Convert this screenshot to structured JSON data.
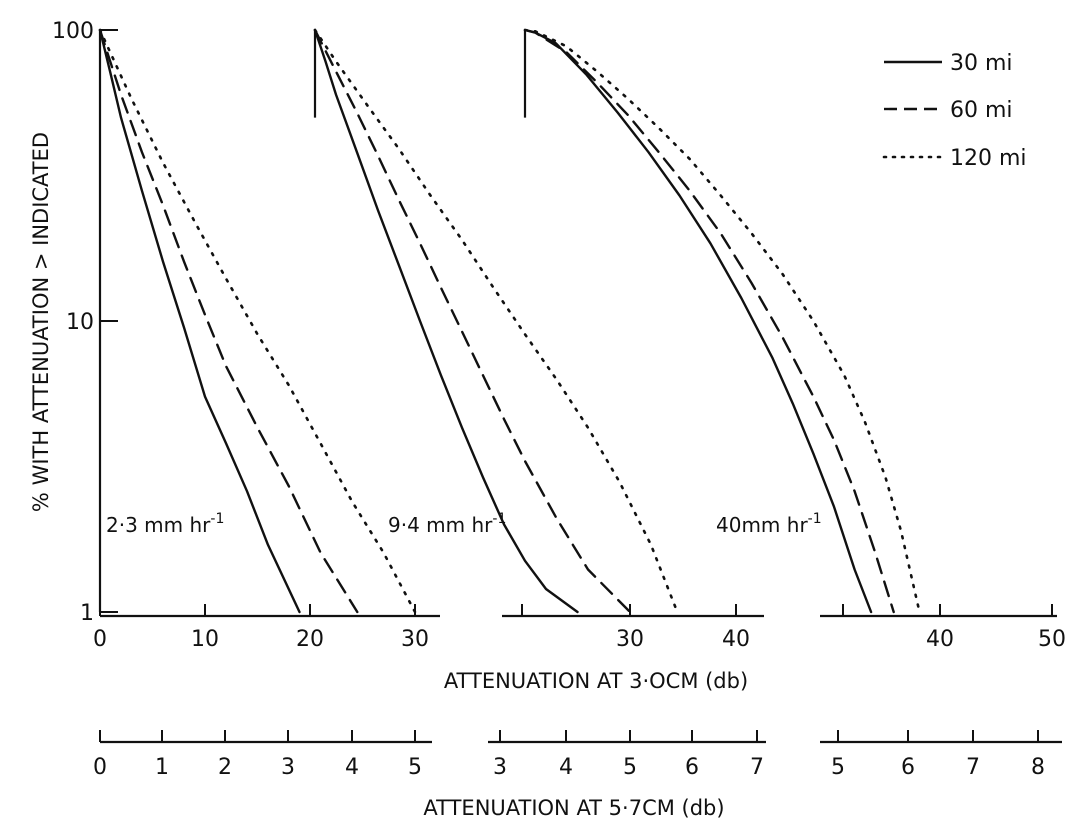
{
  "chart_data": {
    "type": "line",
    "ylabel": "% WITH ATTENUATION > INDICATED",
    "y_scale": "log",
    "ylim": [
      1,
      100
    ],
    "y_ticks": [
      {
        "value": 1,
        "label": "1"
      },
      {
        "value": 10,
        "label": "10"
      },
      {
        "value": 100,
        "label": "100"
      }
    ],
    "x_axis_3cm": {
      "title": "ATTENUATION AT 3·OCM (db)",
      "ticks": [
        "0",
        "10",
        "20",
        "30",
        "30",
        "40",
        "40",
        "50"
      ]
    },
    "x_axis_5_7cm": {
      "title": "ATTENUATION AT 5·7CM (db)",
      "ticks": [
        "0",
        "1",
        "2",
        "3",
        "4",
        "5",
        "3",
        "4",
        "5",
        "6",
        "7",
        "5",
        "6",
        "7",
        "8"
      ]
    },
    "legend": {
      "position": "top-right",
      "entries": [
        {
          "label": "30 mi",
          "style": "solid"
        },
        {
          "label": "60 mi",
          "style": "dashed"
        },
        {
          "label": "120 mi",
          "style": "dotted"
        }
      ]
    },
    "panels": [
      {
        "rain_rate_label": "2·3 mm hr",
        "rain_rate_exponent": "-1",
        "x_range_db_3cm": [
          0,
          33
        ],
        "series": [
          {
            "name": "30 mi",
            "style": "solid",
            "x": [
              0,
              1,
              2,
              4,
              6,
              8,
              10,
              12,
              14,
              16,
              19
            ],
            "y": [
              100,
              71,
              50,
              28,
              16,
              9.5,
              5.5,
              3.8,
              2.6,
              1.7,
              1
            ]
          },
          {
            "name": "60 mi",
            "style": "dashed",
            "x": [
              0,
              2,
              4,
              6,
              8,
              10,
              12,
              15,
              18,
              21,
              24.5
            ],
            "y": [
              100,
              60,
              38,
              25,
              16,
              10.5,
              7,
              4.3,
              2.7,
              1.6,
              1
            ]
          },
          {
            "name": "120 mi",
            "style": "dotted",
            "x": [
              0,
              3,
              6,
              9,
              12,
              15,
              18,
              21,
              24,
              27,
              30
            ],
            "y": [
              100,
              58,
              35,
              22,
              14,
              9,
              6,
              3.8,
              2.4,
              1.6,
              1
            ]
          }
        ]
      },
      {
        "rain_rate_label": "9·4 mm hr",
        "rain_rate_exponent": "-1",
        "x_range_db_3cm": [
          20,
          33
        ],
        "series": [
          {
            "name": "30 mi",
            "style": "solid",
            "x": [
              20,
              21,
              22,
              24,
              26,
              28,
              30,
              32,
              34,
              36,
              38,
              40,
              42,
              45
            ],
            "y": [
              100,
              78,
              60,
              38,
              24,
              15.5,
              10,
              6.5,
              4.3,
              2.9,
              2,
              1.5,
              1.2,
              1
            ]
          },
          {
            "name": "60 mi",
            "style": "dashed",
            "x": [
              20,
              22,
              24,
              26,
              28,
              30,
              32,
              34,
              36,
              38,
              40,
              43,
              46,
              50
            ],
            "y": [
              100,
              72,
              52,
              37,
              26,
              18.5,
              13,
              9.2,
              6.5,
              4.6,
              3.3,
              2.1,
              1.4,
              1
            ]
          },
          {
            "name": "120 mi",
            "style": "dotted",
            "x": [
              20,
              22,
              25,
              28,
              31,
              34,
              37,
              40,
              43,
              46,
              49,
              52,
              54.5
            ],
            "y": [
              100,
              78,
              55,
              39,
              27,
              19,
              13,
              9,
              6.3,
              4.3,
              2.8,
              1.7,
              1
            ]
          }
        ]
      },
      {
        "rain_rate_label": "40mm hr",
        "rain_rate_exponent": "-1",
        "x_range_db_3cm": [
          20,
          52
        ],
        "series": [
          {
            "name": "30 mi",
            "style": "solid",
            "x": [
              20,
              21,
              23,
              26,
              29,
              32,
              35,
              38,
              41,
              44,
              46,
              48,
              50,
              52,
              53.6
            ],
            "y": [
              100,
              98,
              90,
              70,
              52,
              38,
              27,
              18.5,
              12,
              7.5,
              5.2,
              3.5,
              2.3,
              1.4,
              1
            ]
          },
          {
            "name": "60 mi",
            "style": "dashed",
            "x": [
              20,
              21,
              24,
              27,
              30,
              33,
              36,
              39,
              42,
              45,
              48,
              50,
              52,
              54,
              55.8
            ],
            "y": [
              100,
              98,
              84,
              66,
              51,
              38,
              28,
              20,
              13.5,
              8.8,
              5.5,
              3.9,
              2.6,
              1.6,
              1
            ]
          },
          {
            "name": "120 mi",
            "style": "dotted",
            "x": [
              20,
              21,
              24,
              27,
              30,
              33,
              36,
              39,
              42,
              45,
              48,
              51,
              53,
              55,
              56.5,
              58.3
            ],
            "y": [
              100,
              99,
              88,
              72,
              58,
              46,
              36,
              27,
              20,
              14.5,
              10,
              6.5,
              4.5,
              2.9,
              1.9,
              1
            ]
          }
        ]
      }
    ]
  }
}
